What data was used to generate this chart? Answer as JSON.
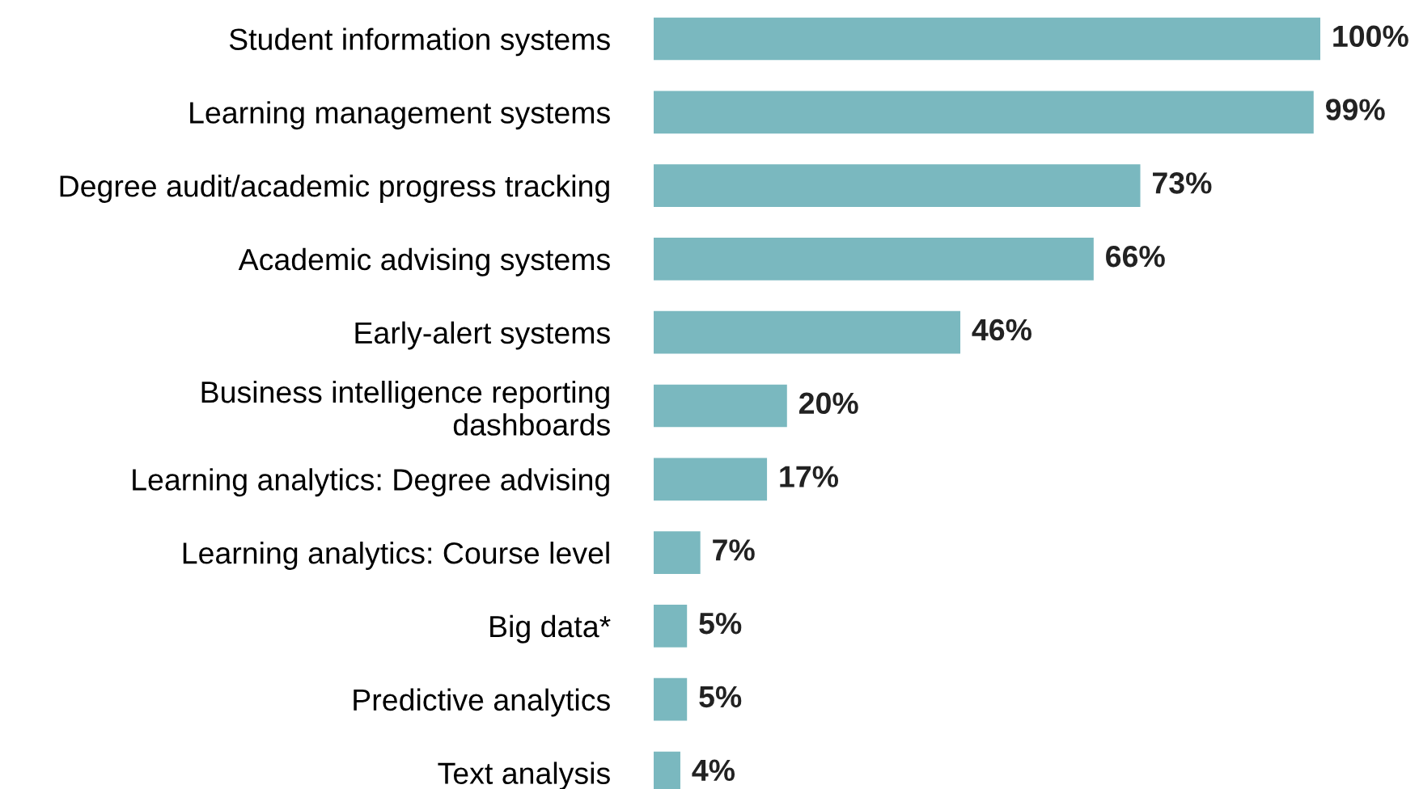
{
  "chart_data": {
    "type": "bar",
    "orientation": "horizontal",
    "categories": [
      "Student information systems",
      "Learning management systems",
      "Degree audit/academic progress tracking",
      "Academic advising systems",
      "Early-alert systems",
      "Business intelligence reporting\ndashboards",
      "Learning analytics: Degree advising",
      "Learning analytics: Course level",
      "Big data*",
      "Predictive analytics",
      "Text analysis"
    ],
    "values": [
      100,
      99,
      73,
      66,
      46,
      20,
      17,
      7,
      5,
      5,
      4
    ],
    "value_labels": [
      "100%",
      "99%",
      "73%",
      "66%",
      "46%",
      "20%",
      "17%",
      "7%",
      "5%",
      "5%",
      "4%"
    ],
    "color": "#7ab8bf",
    "grid": false,
    "legend": false
  }
}
